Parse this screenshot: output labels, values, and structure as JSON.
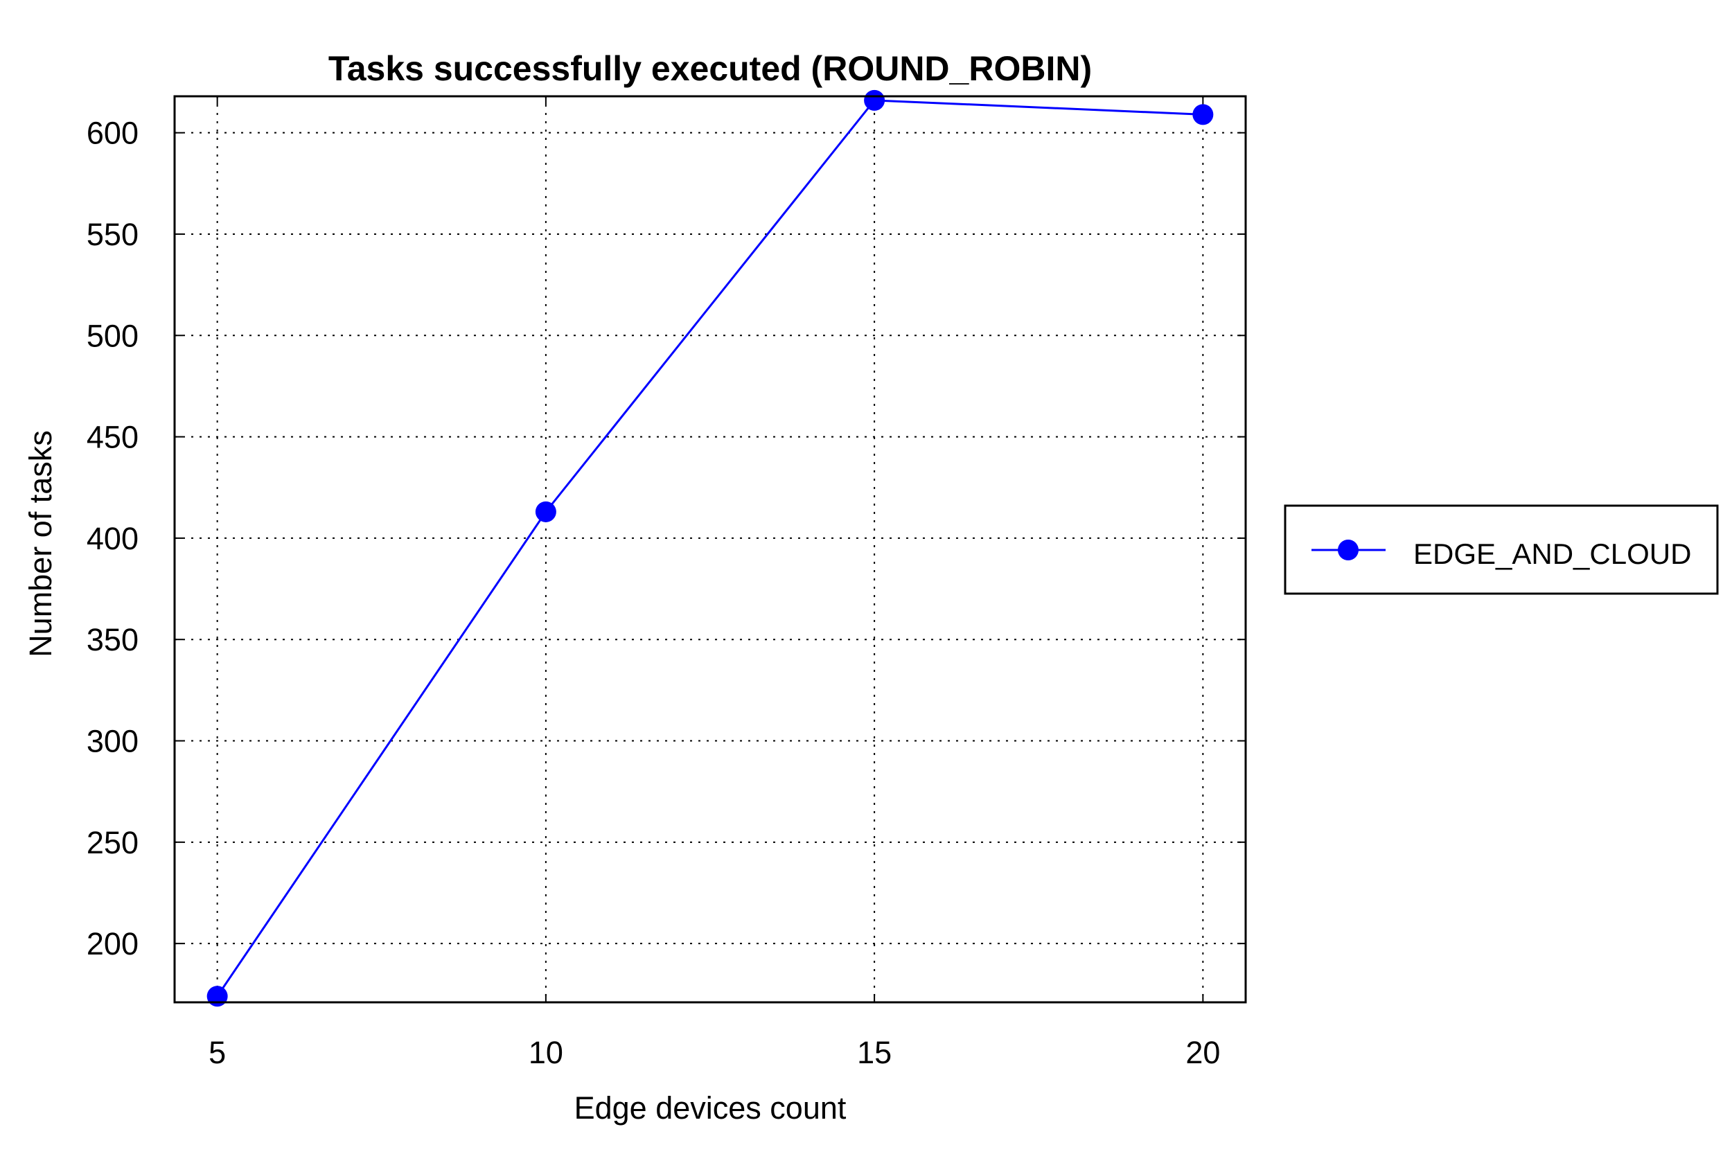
{
  "chart_data": {
    "type": "line",
    "title": "Tasks successfully executed (ROUND_ROBIN)",
    "xlabel": "Edge devices count",
    "ylabel": "Number of tasks",
    "x": [
      5,
      10,
      15,
      20
    ],
    "xticks": [
      "5",
      "10",
      "15",
      "20"
    ],
    "yticks": [
      "200",
      "250",
      "300",
      "350",
      "400",
      "450",
      "500",
      "550",
      "600"
    ],
    "xlim": [
      4.35,
      20.65
    ],
    "ylim": [
      171,
      618
    ],
    "grid": true,
    "legend_position": "right",
    "series": [
      {
        "name": "EDGE_AND_CLOUD",
        "color": "#0000ff",
        "marker": "circle",
        "values": [
          174,
          413,
          616,
          609
        ]
      }
    ]
  }
}
